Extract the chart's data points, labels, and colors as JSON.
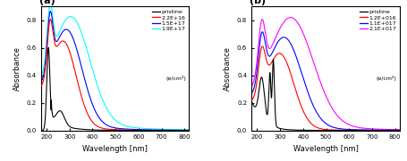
{
  "panel_a": {
    "label": "(a)",
    "xlabel": "Wavelength [nm]",
    "ylabel": "Absorbance",
    "xlim": [
      175,
      820
    ],
    "ylim": [
      0,
      0.9
    ],
    "yticks": [
      0.0,
      0.2,
      0.4,
      0.6,
      0.8
    ],
    "xticks": [
      200,
      300,
      400,
      500,
      600,
      700,
      800
    ],
    "legend_entries": [
      "pristine",
      "2.2E+16",
      "1.5E+17",
      "1.9E+17"
    ],
    "legend_unit": "(e/cm²)",
    "colors": [
      "black",
      "red",
      "blue",
      "cyan"
    ]
  },
  "panel_b": {
    "label": "(b)",
    "xlabel": "Wavelength [nm]",
    "ylabel": "Absorbance",
    "xlim": [
      175,
      820
    ],
    "ylim": [
      0,
      0.9
    ],
    "yticks": [
      0.0,
      0.2,
      0.4,
      0.6,
      0.8
    ],
    "xticks": [
      200,
      300,
      400,
      500,
      600,
      700,
      800
    ],
    "legend_entries": [
      "pristine",
      "1.2E+016",
      "1.1E+017",
      "2.1E+017"
    ],
    "legend_unit": "(e/cm²)",
    "colors": [
      "black",
      "red",
      "blue",
      "magenta"
    ]
  }
}
